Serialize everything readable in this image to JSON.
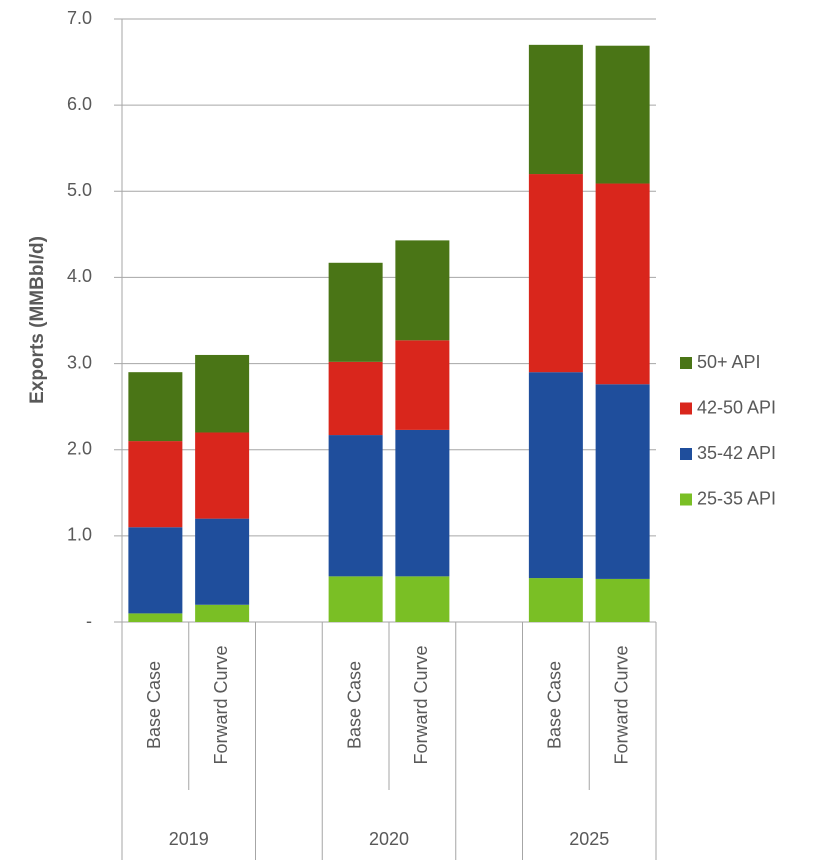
{
  "chart_data": {
    "type": "stacked_bar",
    "y_label": "Exports (MMBbl/d)",
    "groups": [
      "2019",
      "2020",
      "2025"
    ],
    "categories": [
      "Base Case",
      "Forward Curve",
      "Base Case",
      "Forward Curve",
      "Base Case",
      "Forward Curve"
    ],
    "series": [
      {
        "name": "25-35 API",
        "color": "#7abf25",
        "values": [
          0.1,
          0.2,
          0.53,
          0.53,
          0.51,
          0.5
        ]
      },
      {
        "name": "35-42 API",
        "color": "#1f4e9c",
        "values": [
          1.0,
          1.0,
          1.64,
          1.7,
          2.39,
          2.26
        ]
      },
      {
        "name": "42-50 API",
        "color": "#d9261c",
        "values": [
          1.0,
          1.0,
          0.85,
          1.04,
          2.3,
          2.33
        ]
      },
      {
        "name": "50+ API",
        "color": "#4a7516",
        "values": [
          0.8,
          0.9,
          1.15,
          1.16,
          1.5,
          1.6
        ]
      }
    ],
    "ylim": [
      0,
      7
    ],
    "yticks": [
      {
        "value": 0,
        "label": "-"
      },
      {
        "value": 1,
        "label": "1.0"
      },
      {
        "value": 2,
        "label": "2.0"
      },
      {
        "value": 3,
        "label": "3.0"
      },
      {
        "value": 4,
        "label": "4.0"
      },
      {
        "value": 5,
        "label": "5.0"
      },
      {
        "value": 6,
        "label": "6.0"
      },
      {
        "value": 7,
        "label": "7.0"
      }
    ],
    "grid": true
  }
}
